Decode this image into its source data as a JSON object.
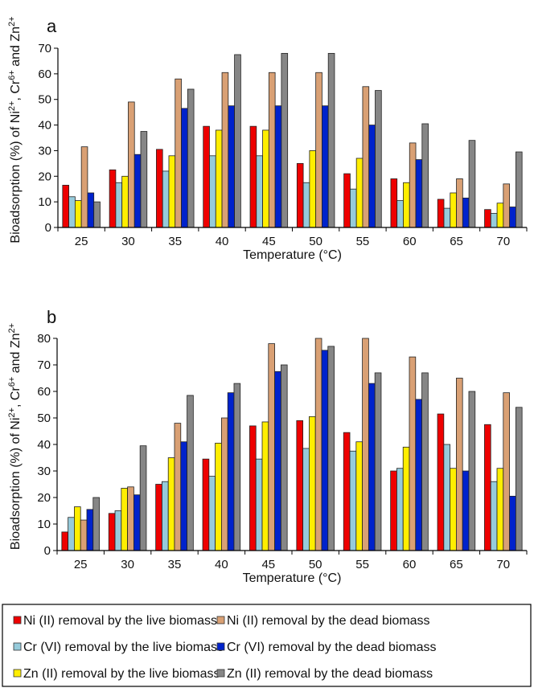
{
  "chart_data": [
    {
      "type": "bar",
      "panel_label": "a",
      "xlabel": "Temperature (°C)",
      "ylabel_parts": [
        "Bioadsorption (%) of Ni",
        "2+",
        ", Cr",
        "6+",
        " and Zn",
        "2+"
      ],
      "ylim": [
        0,
        70
      ],
      "yticks": [
        0,
        10,
        20,
        30,
        40,
        50,
        60,
        70
      ],
      "grid": false,
      "categories": [
        "25",
        "30",
        "35",
        "40",
        "45",
        "50",
        "55",
        "60",
        "65",
        "70"
      ],
      "series": [
        {
          "name": "Ni (II) removal by the live biomass",
          "color": "#ee0000",
          "values": [
            16.5,
            22.5,
            30.5,
            39.5,
            39.5,
            25,
            21,
            19,
            11,
            7
          ]
        },
        {
          "name": "Cr (VI) removal by the live biomass",
          "color": "#96cbdb",
          "values": [
            12,
            17.5,
            22,
            28,
            28,
            17.5,
            15,
            10.5,
            7.5,
            5.5
          ]
        },
        {
          "name": "Zn (II) removal by the live biomass",
          "color": "#ffee00",
          "values": [
            10.5,
            20,
            28,
            38,
            38,
            30,
            27,
            17.5,
            13.5,
            9.5
          ]
        },
        {
          "name": "Ni (II) removal by the dead biomass",
          "color": "#d9a074",
          "values": [
            31.5,
            49,
            58,
            60.5,
            60.5,
            60.5,
            55,
            33,
            19,
            17
          ]
        },
        {
          "name": "Cr (VI) removal by the dead biomass",
          "color": "#0022cc",
          "values": [
            13.5,
            28.5,
            46.5,
            47.5,
            47.5,
            47.5,
            40,
            26.5,
            11.5,
            8
          ]
        },
        {
          "name": "Zn (II) removal by the dead biomass",
          "color": "#868686",
          "values": [
            10,
            37.5,
            54,
            67.5,
            68,
            68,
            53.5,
            40.5,
            34,
            29.5
          ]
        }
      ]
    },
    {
      "type": "bar",
      "panel_label": "b",
      "xlabel": "Temperature (°C)",
      "ylabel_parts": [
        "Bioadsorption (%) of Ni",
        "2+",
        ", Cr",
        "6+",
        " and Zn",
        "2+"
      ],
      "ylim": [
        0,
        80
      ],
      "yticks": [
        0,
        10,
        20,
        30,
        40,
        50,
        60,
        70,
        80
      ],
      "grid": false,
      "categories": [
        "25",
        "30",
        "35",
        "40",
        "45",
        "50",
        "55",
        "60",
        "65",
        "70"
      ],
      "series": [
        {
          "name": "Ni (II) removal by the live biomass",
          "color": "#ee0000",
          "values": [
            7,
            14,
            25,
            34.5,
            47,
            49,
            44.5,
            30,
            51.5,
            47.5
          ]
        },
        {
          "name": "Cr (VI) removal by the live biomass",
          "color": "#96cbdb",
          "values": [
            12.5,
            15,
            26,
            28,
            34.5,
            38.5,
            37.5,
            31,
            40,
            26
          ]
        },
        {
          "name": "Zn (II) removal by the live biomass",
          "color": "#ffee00",
          "values": [
            16.5,
            23.5,
            35,
            40.5,
            48.5,
            50.5,
            41,
            39,
            31,
            31
          ]
        },
        {
          "name": "Ni (II) removal by the dead biomass",
          "color": "#d9a074",
          "values": [
            11.5,
            24,
            48,
            50,
            78,
            80,
            80,
            73,
            65,
            59.5
          ]
        },
        {
          "name": "Cr (VI) removal by the dead biomass",
          "color": "#0022cc",
          "values": [
            15.5,
            21,
            41,
            59.5,
            67.5,
            75.5,
            63,
            57,
            30,
            20.5
          ]
        },
        {
          "name": "Zn (II) removal by the dead biomass",
          "color": "#868686",
          "values": [
            20,
            39.5,
            58.5,
            63,
            70,
            77,
            67,
            67,
            60,
            54
          ]
        }
      ]
    }
  ],
  "legend": {
    "placement": "bottom",
    "items": [
      {
        "label": "Ni (II) removal by the live biomass",
        "color": "#ee0000"
      },
      {
        "label": "Ni (II) removal by the dead biomass",
        "color": "#d9a074"
      },
      {
        "label": "Cr (VI) removal by the live biomass",
        "color": "#96cbdb"
      },
      {
        "label": "Cr (VI) removal by the dead biomass",
        "color": "#0022cc"
      },
      {
        "label": "Zn (II) removal by the live biomass",
        "color": "#ffee00"
      },
      {
        "label": "Zn (II) removal by the dead biomass",
        "color": "#868686"
      }
    ]
  }
}
